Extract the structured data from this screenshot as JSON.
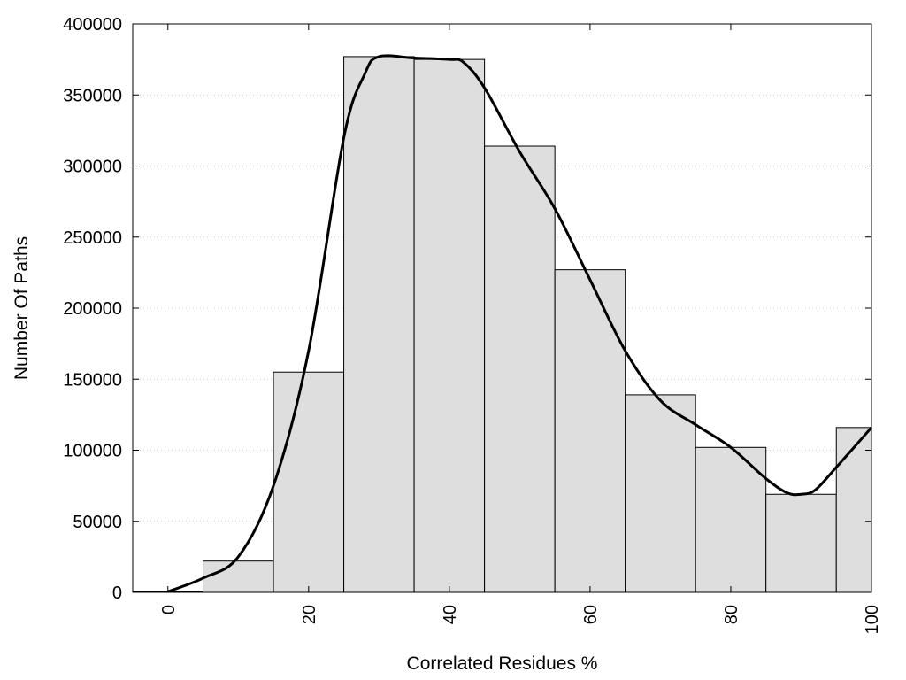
{
  "chart_data": {
    "type": "bar",
    "subtype": "histogram_with_smoothed_line",
    "title": "",
    "xlabel": "Correlated Residues %",
    "ylabel": "Number Of Paths",
    "xlim": [
      -5,
      100
    ],
    "ylim": [
      0,
      400000
    ],
    "xticks": [
      0,
      20,
      40,
      60,
      80,
      100
    ],
    "yticks": [
      0,
      50000,
      100000,
      150000,
      200000,
      250000,
      300000,
      350000,
      400000
    ],
    "grid": "horizontal dotted",
    "legend": "none",
    "bin_width": 10,
    "bins": [
      {
        "center": 0,
        "value": 500
      },
      {
        "center": 10,
        "value": 22000
      },
      {
        "center": 20,
        "value": 155000
      },
      {
        "center": 30,
        "value": 377000
      },
      {
        "center": 40,
        "value": 375000
      },
      {
        "center": 50,
        "value": 314000
      },
      {
        "center": 60,
        "value": 227000
      },
      {
        "center": 70,
        "value": 139000
      },
      {
        "center": 80,
        "value": 102000
      },
      {
        "center": 90,
        "value": 69000
      },
      {
        "center": 100,
        "value": 116000
      }
    ],
    "smooth_line": {
      "x": [
        0,
        5,
        10,
        15,
        20,
        25,
        28,
        30,
        35,
        40,
        42,
        45,
        50,
        55,
        60,
        65,
        70,
        75,
        80,
        85,
        88,
        90,
        92,
        95,
        100
      ],
      "y": [
        500,
        10000,
        25000,
        75000,
        170000,
        320000,
        365000,
        377000,
        376000,
        375000,
        373000,
        355000,
        310000,
        270000,
        220000,
        170000,
        135000,
        118000,
        102000,
        80000,
        70000,
        69000,
        72000,
        88000,
        116000
      ]
    },
    "colors": {
      "bar_fill": "#dedede",
      "bar_stroke": "#000000",
      "line": "#000000",
      "grid": "#cccccc"
    }
  }
}
